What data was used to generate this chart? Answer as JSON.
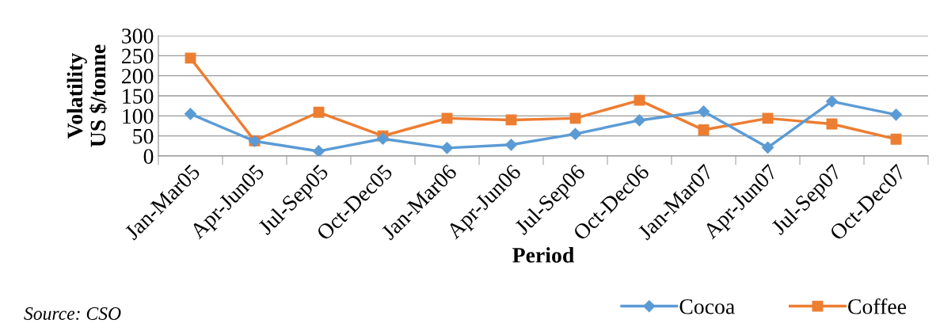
{
  "chart_data": {
    "type": "line",
    "xlabel": "Period",
    "ylabel": "Volatility\nUS $/tonne",
    "categories": [
      "Jan-Mar05",
      "Apr-Jun05",
      "Jul-Sep05",
      "Oct-Dec05",
      "Jan-Mar06",
      "Apr-Jun06",
      "Jul-Sep06",
      "Oct-Dec06",
      "Jan-Mar07",
      "Apr-Jun07",
      "Jul-Sep07",
      "Oct-Dec07"
    ],
    "series": [
      {
        "name": "Cocoa",
        "color": "#5b9bd5",
        "marker": "diamond",
        "values": [
          105,
          37,
          12,
          43,
          20,
          28,
          55,
          89,
          111,
          21,
          136,
          103
        ]
      },
      {
        "name": "Coffee",
        "color": "#ed7d31",
        "marker": "square",
        "values": [
          244,
          38,
          109,
          50,
          94,
          90,
          94,
          139,
          65,
          94,
          80,
          42
        ]
      }
    ],
    "ylim": [
      0,
      300
    ],
    "yticks": [
      0,
      50,
      100,
      150,
      200,
      250,
      300
    ],
    "grid": "y",
    "legend": "bottom right",
    "annotations": [
      "Source: CSO"
    ]
  }
}
